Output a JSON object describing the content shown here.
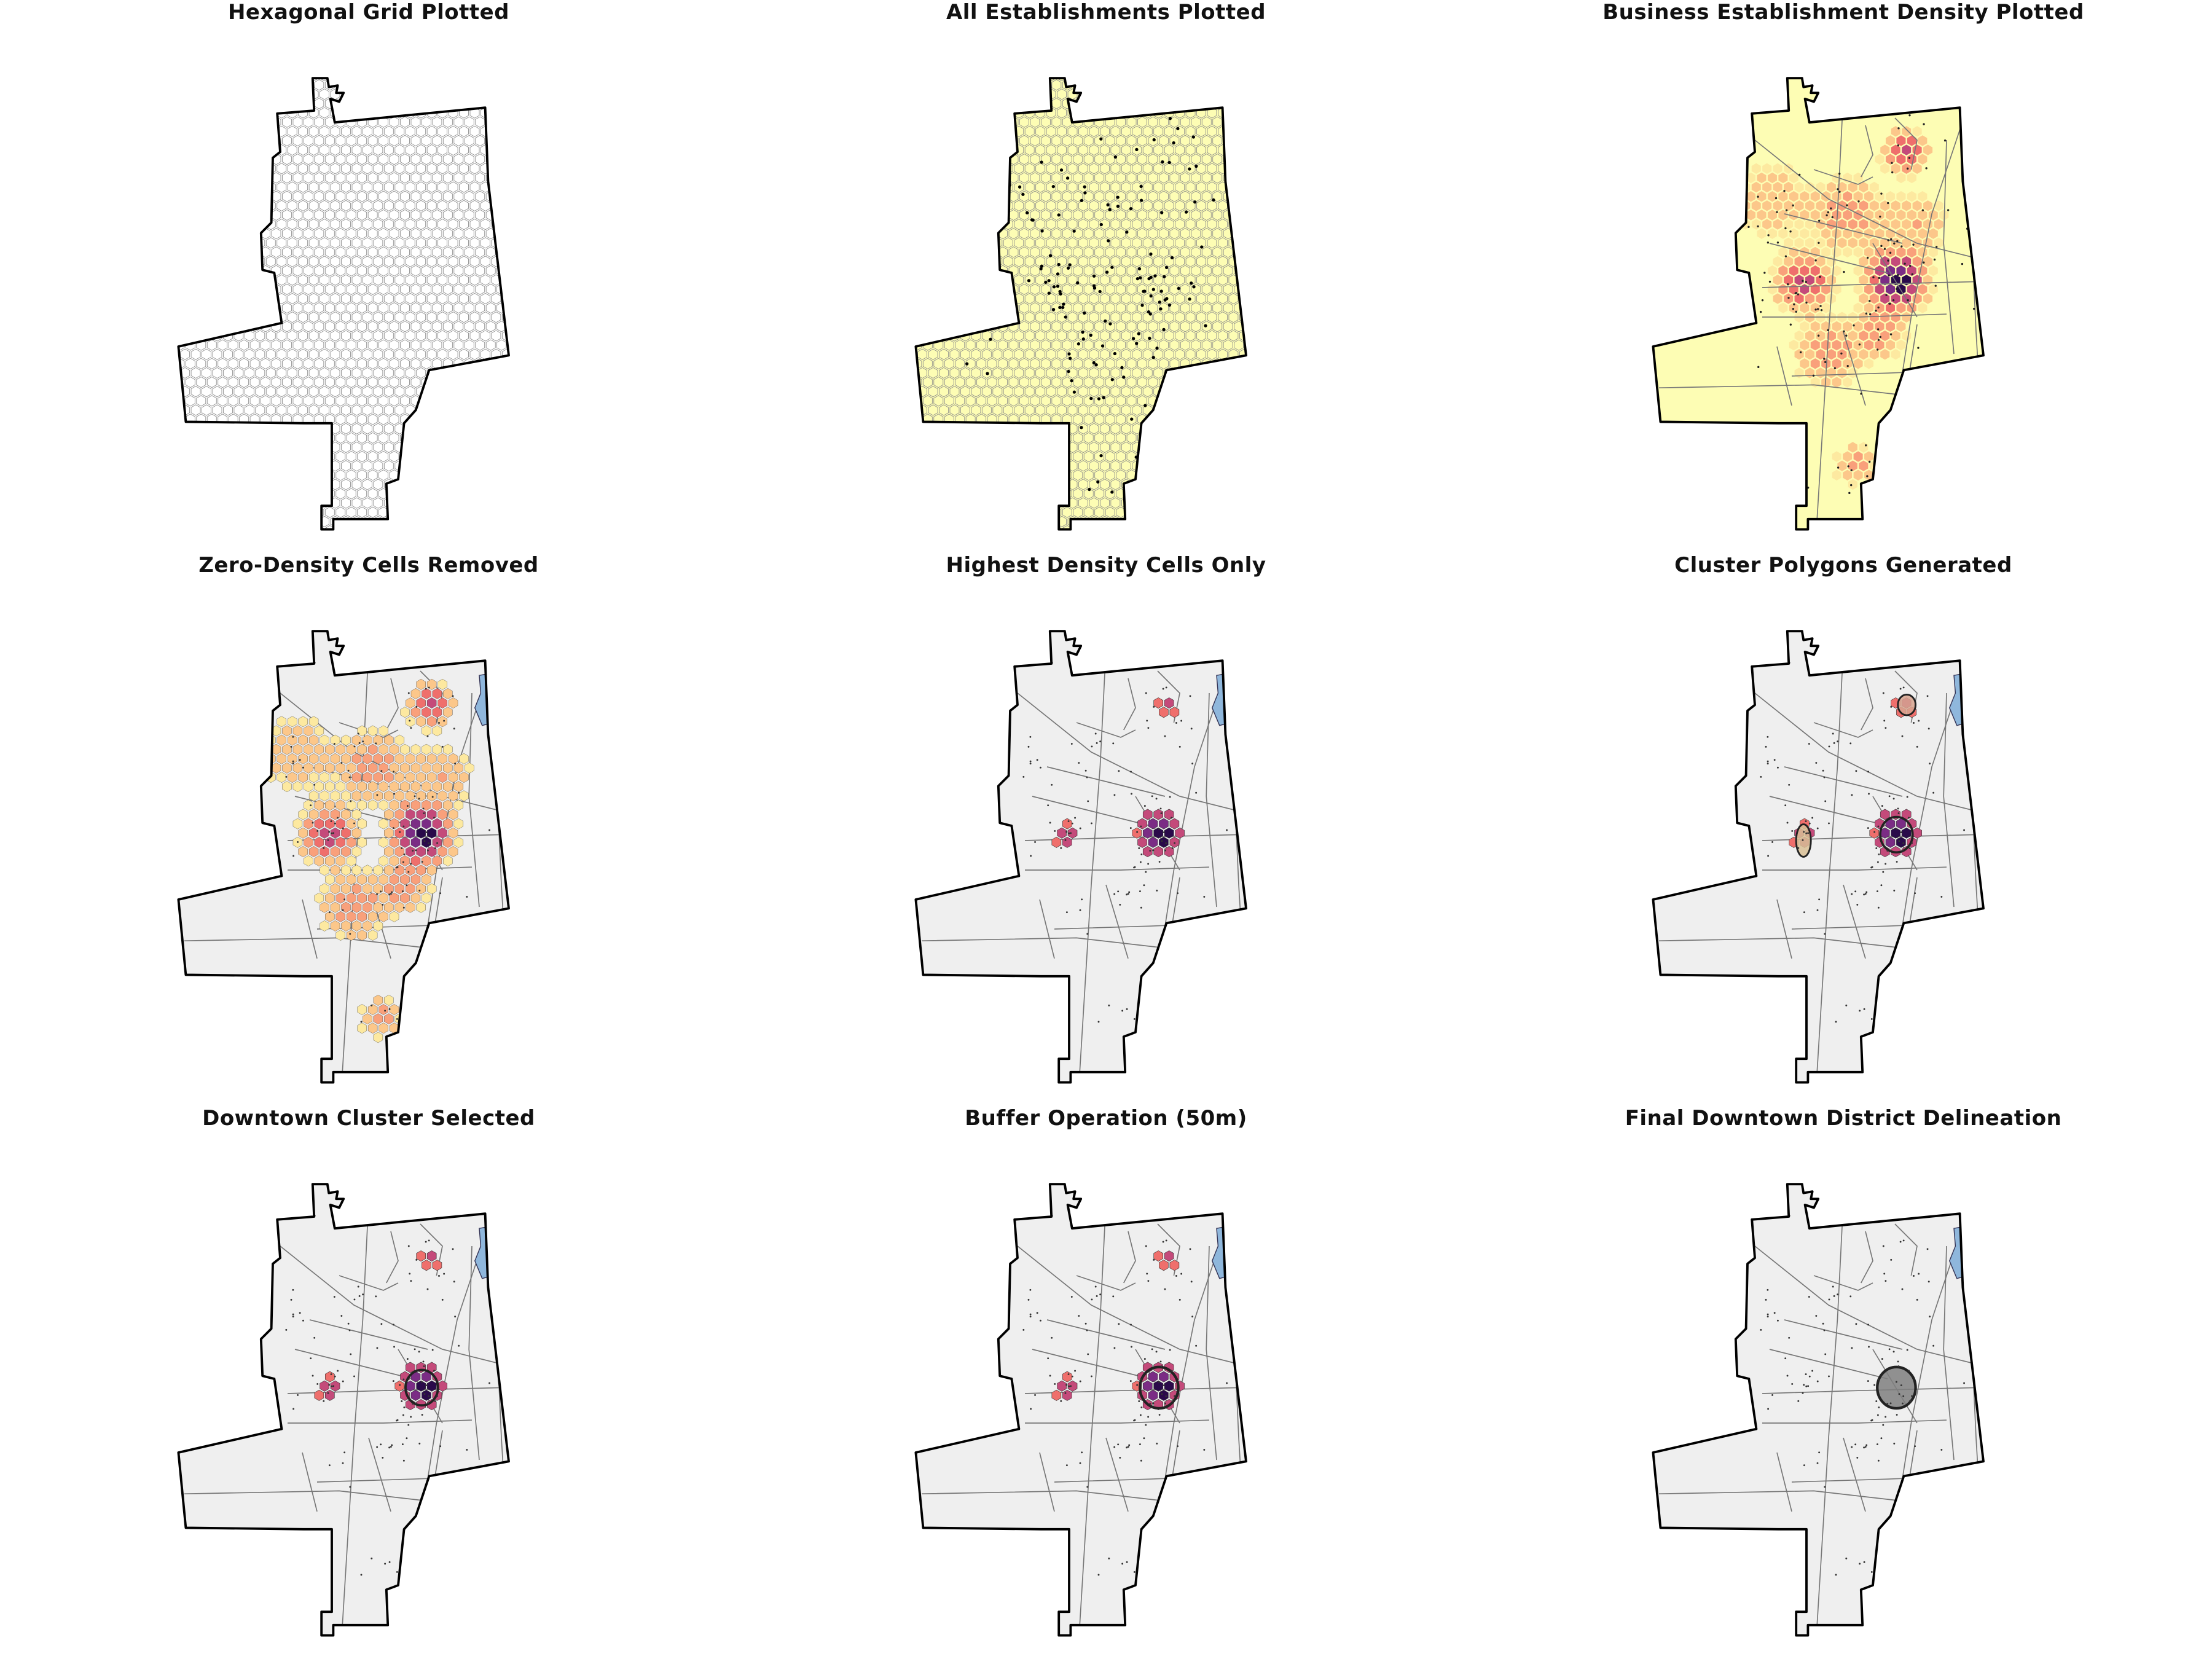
{
  "figure": {
    "panels": [
      {
        "id": "p1",
        "title": "Hexagonal Grid Plotted",
        "view": "hex-grid"
      },
      {
        "id": "p2",
        "title": "All Establishments Plotted",
        "view": "establishments"
      },
      {
        "id": "p3",
        "title": "Business Establishment Density Plotted",
        "view": "density"
      },
      {
        "id": "p4",
        "title": "Zero-Density Cells Removed",
        "view": "nonzero-cells"
      },
      {
        "id": "p5",
        "title": "Highest Density Cells Only",
        "view": "top-cells"
      },
      {
        "id": "p6",
        "title": "Cluster Polygons Generated",
        "view": "cluster-polygons"
      },
      {
        "id": "p7",
        "title": "Downtown Cluster Selected",
        "view": "downtown-selected"
      },
      {
        "id": "p8",
        "title": "Buffer Operation (50m)",
        "view": "buffer"
      },
      {
        "id": "p9",
        "title": "Final Downtown District Delineation",
        "view": "final-district"
      }
    ]
  },
  "colors": {
    "boundary_stroke": "#000000",
    "hex_stroke": "#8a8a8a",
    "background_fill": "#efefef",
    "density_base_fill": "#fdfdb4",
    "density_ramp": [
      "#fde9a0",
      "#fcc78a",
      "#f9a07b",
      "#ef6f6c",
      "#c44a7a",
      "#7b2c85",
      "#2a0a4a"
    ],
    "water": "#8fb7dc",
    "roads": "#777777",
    "final_district": "#7f7f7f"
  }
}
